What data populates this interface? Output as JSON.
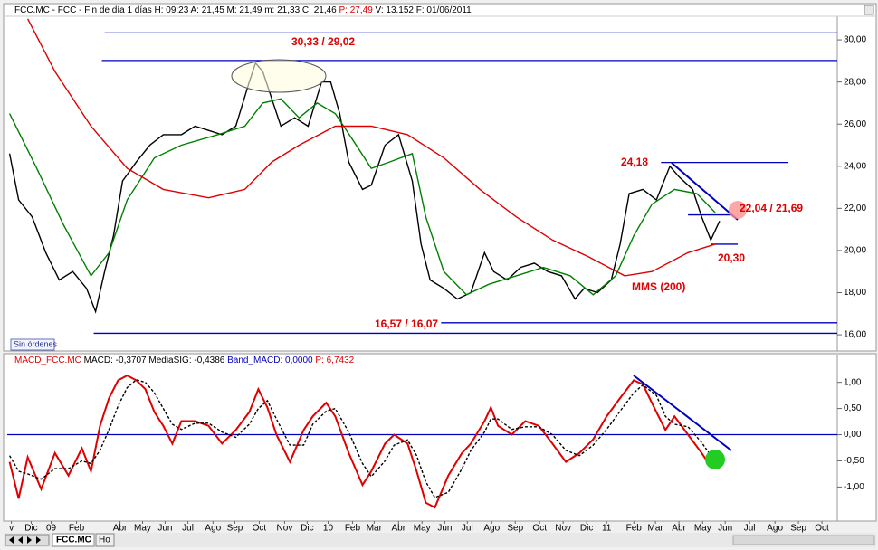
{
  "chart_data": [
    {
      "type": "line",
      "header": [
        "FCC.MC - FCC - Fin de día 1 días H: 09:23 A: 21,45 M: 21,49 m: 21,33 C: 21,46",
        "P: 27,49",
        "V: 13.152 F: 01/06/2011"
      ],
      "xlim": [
        -0.1,
        35.6
      ],
      "ylim": [
        15.23,
        31.12
      ],
      "yticks": [
        {
          "value": 16,
          "label": "16,00"
        },
        {
          "value": 18,
          "label": "18,00"
        },
        {
          "value": 20,
          "label": "20,00"
        },
        {
          "value": 22,
          "label": "22,00"
        },
        {
          "value": 24,
          "label": "24,00"
        },
        {
          "value": 26,
          "label": "26,00"
        },
        {
          "value": 28,
          "label": "28,00"
        },
        {
          "value": 30,
          "label": "30,00"
        }
      ],
      "series": [
        {
          "color": "#000000",
          "x": [
            0,
            0.39,
            0.97,
            1.56,
            2.14,
            2.72,
            3.31,
            3.7,
            4.09,
            4.47,
            4.86,
            5.45,
            6.03,
            6.61,
            7.39,
            7.98,
            8.56,
            9.14,
            9.73,
            10.31,
            10.58,
            10.89,
            11.28,
            11.67,
            12.26,
            12.84,
            13.42,
            13.81,
            14.2,
            14.59,
            15.18,
            15.56,
            16.15,
            16.73,
            17.32,
            17.7,
            18.09,
            18.68,
            19.26,
            19.84,
            20.43,
            20.82,
            21.4,
            21.98,
            22.57,
            23.15,
            23.74,
            24.32,
            24.71,
            25.29,
            25.88,
            26.26,
            26.65,
            27.24,
            27.82,
            28.4,
            28.79,
            29.38,
            29.77,
            30.16,
            30.54
          ],
          "values": [
            24.6,
            22.4,
            21.6,
            19.9,
            18.6,
            19.0,
            18.2,
            17.1,
            19.0,
            20.7,
            23.3,
            24.2,
            25.0,
            25.5,
            25.5,
            25.9,
            25.7,
            25.5,
            25.9,
            28.0,
            28.9,
            28.5,
            27.2,
            25.9,
            26.3,
            25.9,
            28.0,
            28.0,
            26.5,
            24.2,
            22.9,
            23.1,
            25.0,
            25.5,
            23.3,
            20.3,
            18.6,
            18.2,
            17.7,
            18.0,
            19.9,
            19.0,
            18.6,
            19.2,
            19.4,
            19.0,
            18.8,
            17.7,
            18.2,
            18.0,
            18.6,
            20.3,
            22.7,
            22.9,
            22.4,
            24.0,
            23.5,
            22.9,
            21.6,
            20.5,
            21.4
          ]
        },
        {
          "color": "#008000",
          "x": [
            0,
            1.17,
            2.33,
            3.5,
            4.28,
            5.06,
            6.23,
            7.39,
            8.95,
            10.12,
            10.89,
            11.67,
            12.45,
            13.23,
            14.01,
            14.79,
            15.56,
            16.34,
            17.32,
            17.9,
            18.68,
            19.65,
            20.62,
            21.79,
            22.96,
            24.12,
            25.1,
            26.07,
            26.85,
            27.63,
            28.6,
            29.57,
            30.35
          ],
          "values": [
            26.5,
            23.9,
            21.2,
            18.8,
            19.9,
            22.4,
            24.4,
            25.0,
            25.5,
            25.9,
            27.0,
            27.2,
            26.3,
            27.0,
            26.5,
            25.2,
            23.9,
            24.2,
            24.6,
            21.6,
            19.0,
            17.9,
            18.4,
            18.8,
            19.2,
            18.8,
            17.9,
            18.8,
            20.7,
            22.2,
            22.9,
            22.7,
            21.8
          ]
        },
        {
          "color": "#e00000",
          "x": [
            0.78,
            1.95,
            3.5,
            5.06,
            6.61,
            8.56,
            10.12,
            11.28,
            12.45,
            14.01,
            15.56,
            17.12,
            18.68,
            20.23,
            21.79,
            23.35,
            24.9,
            26.46,
            27.63,
            29.18,
            30.35
          ],
          "values": [
            31.0,
            28.5,
            25.9,
            23.9,
            22.9,
            22.5,
            22.9,
            24.2,
            25.0,
            25.9,
            25.9,
            25.5,
            24.4,
            22.9,
            21.6,
            20.5,
            19.7,
            18.8,
            19.0,
            19.9,
            20.3
          ]
        }
      ],
      "levels": [
        {
          "value": 30.33,
          "from": 4.09,
          "to": 35.6
        },
        {
          "value": 29.02,
          "from": 3.97,
          "to": 35.6
        },
        {
          "value": 24.18,
          "from": 28.02,
          "to": 33.5
        },
        {
          "value": 21.69,
          "from": 29.18,
          "to": 31.05
        },
        {
          "value": 20.3,
          "from": 30.16,
          "to": 31.32
        },
        {
          "value": 16.57,
          "from": 18.56,
          "to": 35.6
        },
        {
          "value": 16.07,
          "from": 3.62,
          "to": 35.6
        }
      ],
      "annotations": [
        "30,33 / 29,02",
        "24,18",
        "22,04 / 21,69",
        "20,30",
        "16,57 / 16,07",
        "MMS (200)"
      ],
      "status": "Sin órdenes"
    },
    {
      "type": "line",
      "header": [
        "MACD_FCC.MC",
        "MACD: -0,3707",
        "MediaSIG: -0,4386",
        "Band_MACD: 0,0000",
        "P: 6,7432"
      ],
      "xlim": [
        -0.1,
        35.6
      ],
      "ylim": [
        -1.65,
        1.53
      ],
      "yticks": [
        {
          "value": -1,
          "label": "-1,00"
        },
        {
          "value": -0.5,
          "label": "-0,50"
        },
        {
          "value": 0,
          "label": "0,00"
        },
        {
          "value": 0.5,
          "label": "0,50"
        },
        {
          "value": 1,
          "label": "1,00"
        }
      ],
      "xticks": [
        {
          "value": 0.08,
          "label": "v"
        },
        {
          "value": 0.93,
          "label": "Dic"
        },
        {
          "value": 1.79,
          "label": "09"
        },
        {
          "value": 2.88,
          "label": "Feb"
        },
        {
          "value": 4.75,
          "label": "Abr"
        },
        {
          "value": 5.72,
          "label": "May"
        },
        {
          "value": 6.69,
          "label": "Jun"
        },
        {
          "value": 7.67,
          "label": "Jul"
        },
        {
          "value": 8.75,
          "label": "Ago"
        },
        {
          "value": 9.69,
          "label": "Sep"
        },
        {
          "value": 10.74,
          "label": "Oct"
        },
        {
          "value": 11.83,
          "label": "Nov"
        },
        {
          "value": 12.8,
          "label": "Dic"
        },
        {
          "value": 13.7,
          "label": "10"
        },
        {
          "value": 14.75,
          "label": "Feb"
        },
        {
          "value": 15.68,
          "label": "Mar"
        },
        {
          "value": 16.73,
          "label": "Abr"
        },
        {
          "value": 17.74,
          "label": "May"
        },
        {
          "value": 18.72,
          "label": "Jun"
        },
        {
          "value": 19.69,
          "label": "Jul"
        },
        {
          "value": 20.74,
          "label": "Ago"
        },
        {
          "value": 21.75,
          "label": "Sep"
        },
        {
          "value": 22.8,
          "label": "Oct"
        },
        {
          "value": 23.81,
          "label": "Nov"
        },
        {
          "value": 24.82,
          "label": "Dic"
        },
        {
          "value": 25.68,
          "label": "11"
        },
        {
          "value": 26.85,
          "label": "Feb"
        },
        {
          "value": 27.78,
          "label": "Mar"
        },
        {
          "value": 28.79,
          "label": "Abr"
        },
        {
          "value": 29.81,
          "label": "May"
        },
        {
          "value": 30.78,
          "label": "Jun"
        },
        {
          "value": 31.83,
          "label": "Jul"
        },
        {
          "value": 32.92,
          "label": "Ago"
        },
        {
          "value": 33.93,
          "label": "Sep"
        },
        {
          "value": 34.94,
          "label": "Oct"
        }
      ],
      "x": [
        0,
        0.39,
        0.78,
        1.36,
        1.95,
        2.53,
        3.11,
        3.5,
        3.89,
        4.28,
        4.67,
        5.06,
        5.45,
        5.84,
        6.23,
        6.61,
        7.0,
        7.39,
        7.98,
        8.56,
        9.14,
        9.73,
        10.31,
        10.7,
        11.09,
        11.48,
        12.06,
        12.65,
        13.04,
        13.62,
        14.01,
        14.59,
        15.18,
        15.56,
        16.15,
        16.54,
        17.12,
        17.51,
        17.9,
        18.29,
        18.87,
        19.46,
        19.84,
        20.43,
        20.7,
        21.01,
        21.6,
        22.18,
        22.76,
        23.35,
        23.93,
        24.51,
        25.1,
        25.68,
        26.26,
        26.85,
        27.24,
        27.82,
        28.21,
        28.6,
        29.18,
        29.77,
        30.16,
        30.54
      ],
      "series": [
        {
          "color": "#e00000",
          "width": 2,
          "values": [
            -0.52,
            -1.22,
            -0.43,
            -1.04,
            -0.35,
            -0.78,
            -0.26,
            -0.7,
            0.17,
            0.7,
            1.04,
            1.13,
            1.04,
            0.87,
            0.43,
            0.17,
            -0.17,
            0.26,
            0.26,
            0.17,
            -0.17,
            0.09,
            0.43,
            0.87,
            0.52,
            0,
            -0.52,
            0.09,
            0.35,
            0.61,
            0.35,
            -0.35,
            -0.96,
            -0.7,
            -0.17,
            0,
            -0.17,
            -0.7,
            -1.3,
            -1.39,
            -0.78,
            -0.35,
            -0.17,
            0.26,
            0.52,
            0.17,
            0,
            0.26,
            0.17,
            -0.17,
            -0.52,
            -0.35,
            -0.09,
            0.35,
            0.7,
            1.04,
            0.96,
            0.43,
            0.09,
            0.35,
            0,
            -0.35,
            -0.61,
            -0.43
          ]
        },
        {
          "color": "#000000",
          "dash": true,
          "values": [
            -0.4,
            -0.7,
            -0.75,
            -0.85,
            -0.65,
            -0.65,
            -0.5,
            -0.55,
            -0.3,
            0.1,
            0.55,
            0.9,
            1.05,
            1.0,
            0.8,
            0.5,
            0.2,
            0.1,
            0.22,
            0.22,
            0.05,
            -0.05,
            0.2,
            0.5,
            0.65,
            0.3,
            -0.2,
            -0.2,
            0.2,
            0.45,
            0.5,
            0.05,
            -0.55,
            -0.8,
            -0.5,
            -0.2,
            -0.1,
            -0.4,
            -0.9,
            -1.2,
            -1.1,
            -0.65,
            -0.3,
            0.05,
            0.3,
            0.3,
            0.1,
            0.15,
            0.15,
            0,
            -0.3,
            -0.4,
            -0.2,
            0.1,
            0.45,
            0.8,
            0.95,
            0.75,
            0.35,
            0.2,
            0.15,
            -0.15,
            -0.4,
            -0.5
          ]
        }
      ],
      "levels": [
        {
          "value": 0
        }
      ]
    }
  ],
  "toolbar": {
    "tab": "FCC.MC",
    "tab2": "Ho"
  }
}
